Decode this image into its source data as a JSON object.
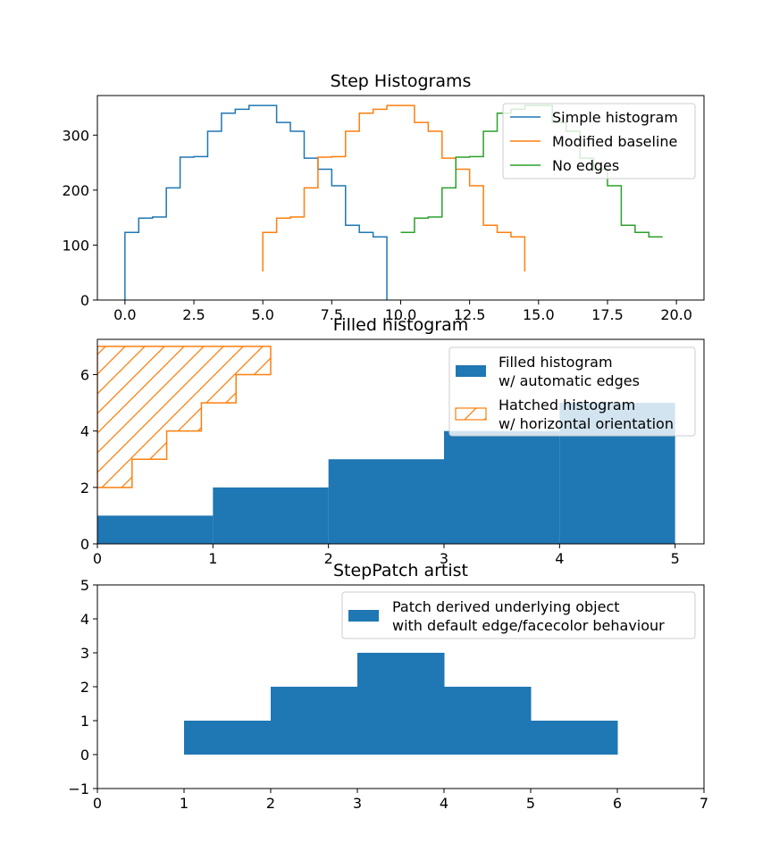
{
  "chart_data": [
    {
      "type": "step",
      "title": "Step Histograms",
      "xlabel": "",
      "ylabel": "",
      "xlim": [
        -1.0,
        21.0
      ],
      "ylim": [
        0,
        372
      ],
      "xticks": [
        0.0,
        2.5,
        5.0,
        7.5,
        10.0,
        12.5,
        15.0,
        17.5,
        20.0
      ],
      "xtick_labels": [
        "0.0",
        "2.5",
        "5.0",
        "7.5",
        "10.0",
        "12.5",
        "15.0",
        "17.5",
        "20.0"
      ],
      "yticks": [
        0,
        100,
        200,
        300
      ],
      "ytick_labels": [
        "0",
        "100",
        "200",
        "300"
      ],
      "bin_edges": [
        0.0,
        0.5,
        1.0,
        1.5,
        2.0,
        2.5,
        3.0,
        3.5,
        4.0,
        4.5,
        5.0,
        5.5,
        6.0,
        6.5,
        7.0,
        7.5,
        8.0,
        8.5,
        9.0,
        9.5,
        10.0
      ],
      "counts": [
        123,
        149,
        151,
        204,
        260,
        261,
        307,
        340,
        347,
        354,
        354,
        323,
        307,
        258,
        238,
        208,
        136,
        123,
        115,
        0
      ],
      "legend_position": "upper right",
      "series": [
        {
          "name": "Simple histogram",
          "x_offset": 0,
          "baseline": 0,
          "color": "#1f77b4",
          "drop_to_baseline": true
        },
        {
          "name": "Modified baseline",
          "x_offset": 5,
          "baseline_at_ends": 52,
          "color": "#ff7f0e",
          "drop_to_baseline": false
        },
        {
          "name": "No edges",
          "x_offset": 10,
          "baseline": 0,
          "color": "#2ca02c",
          "drop_to_baseline": false
        }
      ]
    },
    {
      "type": "bar",
      "title": "Filled histogram",
      "xlim": [
        0,
        5.25
      ],
      "ylim": [
        0,
        7.25
      ],
      "xticks": [
        0,
        1,
        2,
        3,
        4,
        5
      ],
      "xtick_labels": [
        "0",
        "1",
        "2",
        "3",
        "4",
        "5"
      ],
      "yticks": [
        0,
        2,
        4,
        6
      ],
      "ytick_labels": [
        "0",
        "2",
        "4",
        "6"
      ],
      "legend_position": "upper right",
      "series": [
        {
          "name": "Filled histogram\nw/ automatic edges",
          "legend_lines": [
            "Filled histogram",
            "w/ automatic edges"
          ],
          "color": "#1f77b4",
          "edges": [
            0,
            1,
            2,
            3,
            4,
            5
          ],
          "values": [
            1,
            2,
            3,
            4,
            5
          ]
        },
        {
          "name": "Hatched histogram\nw/ horizontal orientation",
          "legend_lines": [
            "Hatched histogram",
            "w/ horizontal orientation"
          ],
          "color": "#ff7f0e",
          "orientation": "horizontal",
          "hatch": "/",
          "edges": [
            2,
            3,
            4,
            5,
            6,
            7
          ],
          "values": [
            0.3,
            0.6,
            0.9,
            1.2,
            1.5
          ]
        }
      ]
    },
    {
      "type": "bar",
      "title": "StepPatch artist",
      "xlim": [
        0,
        7
      ],
      "ylim": [
        -1,
        5
      ],
      "xticks": [
        0,
        1,
        2,
        3,
        4,
        5,
        6,
        7
      ],
      "xtick_labels": [
        "0",
        "1",
        "2",
        "3",
        "4",
        "5",
        "6",
        "7"
      ],
      "yticks": [
        -1,
        0,
        1,
        2,
        3,
        4,
        5
      ],
      "ytick_labels": [
        "−1",
        "0",
        "1",
        "2",
        "3",
        "4",
        "5"
      ],
      "legend_position": "upper right",
      "series": [
        {
          "name": "Patch derived underlying object\nwith default edge/facecolor behaviour",
          "legend_lines": [
            "Patch derived underlying object",
            "with default edge/facecolor behaviour"
          ],
          "color": "#1f77b4",
          "edges": [
            1,
            2,
            3,
            4,
            5,
            6
          ],
          "values": [
            1,
            2,
            3,
            2,
            1
          ],
          "baseline": 0
        }
      ]
    }
  ]
}
